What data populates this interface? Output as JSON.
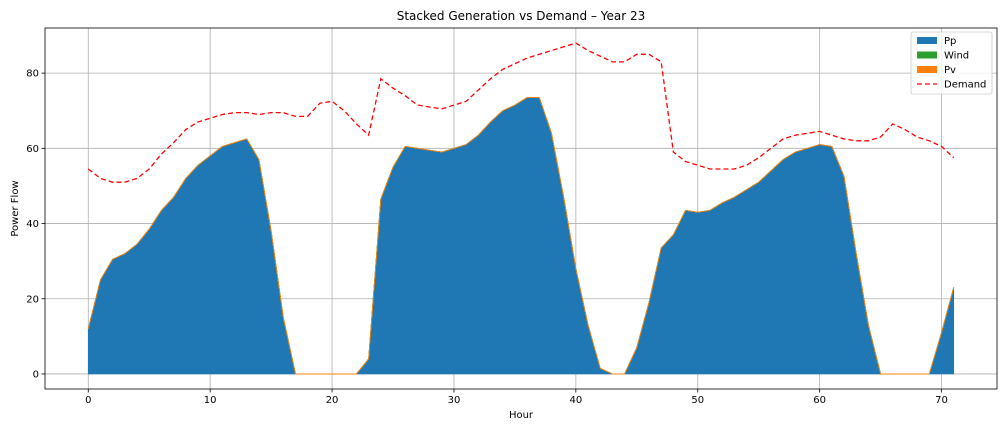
{
  "chart_data": {
    "type": "area",
    "title": "Stacked Generation vs Demand – Year 23",
    "xlabel": "Hour",
    "ylabel": "Power Flow",
    "xlim": [
      -3.55,
      74.55
    ],
    "ylim": [
      -4,
      92
    ],
    "xticks": [
      0,
      10,
      20,
      30,
      40,
      50,
      60,
      70
    ],
    "yticks": [
      0,
      20,
      40,
      60,
      80
    ],
    "grid": true,
    "legend_position": "top-right",
    "x": [
      0,
      1,
      2,
      3,
      4,
      5,
      6,
      7,
      8,
      9,
      10,
      11,
      12,
      13,
      14,
      15,
      16,
      17,
      18,
      19,
      20,
      21,
      22,
      23,
      24,
      25,
      26,
      27,
      28,
      29,
      30,
      31,
      32,
      33,
      34,
      35,
      36,
      37,
      38,
      39,
      40,
      41,
      42,
      43,
      44,
      45,
      46,
      47,
      48,
      49,
      50,
      51,
      52,
      53,
      54,
      55,
      56,
      57,
      58,
      59,
      60,
      61,
      62,
      63,
      64,
      65,
      66,
      67,
      68,
      69,
      70,
      71
    ],
    "series": [
      {
        "name": "Pp",
        "color": "#1f77b4",
        "style": "stacked-area",
        "values": [
          12,
          25,
          30.5,
          32,
          34.5,
          38.5,
          43.5,
          47,
          52,
          55.5,
          58,
          60.5,
          61.5,
          62.5,
          57,
          38,
          15,
          0,
          0,
          0,
          0,
          0,
          0,
          4,
          46.5,
          55,
          60.5,
          60,
          59.5,
          59,
          60,
          61,
          63.5,
          67,
          70,
          71.5,
          73.5,
          73.5,
          64,
          47,
          28,
          13,
          1.5,
          0,
          0,
          7,
          19,
          33.5,
          37,
          43.5,
          43,
          43.5,
          45.5,
          47,
          49,
          51,
          54,
          57,
          59,
          60,
          61,
          60.5,
          52.5,
          32,
          13,
          0,
          0,
          0,
          0,
          0,
          11,
          23
        ]
      },
      {
        "name": "Wind",
        "color": "#2ca02c",
        "style": "stacked-area",
        "values": [
          0,
          0,
          0,
          0,
          0,
          0,
          0,
          0,
          0,
          0,
          0,
          0,
          0,
          0,
          0,
          0,
          0,
          0,
          0,
          0,
          0,
          0,
          0,
          0,
          0,
          0,
          0,
          0,
          0,
          0,
          0,
          0,
          0,
          0,
          0,
          0,
          0,
          0,
          0,
          0,
          0,
          0,
          0,
          0,
          0,
          0,
          0,
          0,
          0,
          0,
          0,
          0,
          0,
          0,
          0,
          0,
          0,
          0,
          0,
          0,
          0,
          0,
          0,
          0,
          0,
          0,
          0,
          0,
          0,
          0,
          0,
          0
        ]
      },
      {
        "name": "Pv",
        "color": "#ff7f0e",
        "style": "stacked-area",
        "values": [
          0,
          0,
          0,
          0,
          0,
          0,
          0,
          0,
          0,
          0,
          0,
          0,
          0,
          0,
          0,
          0,
          0,
          0,
          0,
          0,
          0,
          0,
          0,
          0,
          0,
          0,
          0,
          0,
          0,
          0,
          0,
          0,
          0,
          0,
          0,
          0,
          0,
          0,
          0,
          0,
          0,
          0,
          0,
          0,
          0,
          0,
          0,
          0,
          0,
          0,
          0,
          0,
          0,
          0,
          0,
          0,
          0,
          0,
          0,
          0,
          0,
          0,
          0,
          0,
          0,
          0,
          0,
          0,
          0,
          0,
          0,
          0
        ]
      },
      {
        "name": "Demand",
        "color": "#ff0000",
        "style": "dashed-line",
        "values": [
          54.5,
          52,
          51,
          51,
          52,
          54.5,
          58.5,
          61.5,
          65,
          67,
          68,
          69,
          69.5,
          69.5,
          69,
          69.5,
          69.5,
          68.5,
          68.5,
          72,
          72.5,
          70,
          66.5,
          63.5,
          78.5,
          76,
          74,
          71.5,
          71,
          70.5,
          71.5,
          72.5,
          75.5,
          78.5,
          81,
          82.5,
          84,
          85,
          86,
          87,
          88,
          86,
          84.5,
          83,
          83,
          85,
          85,
          83,
          59,
          56.5,
          55.5,
          54.5,
          54.5,
          54.5,
          55.5,
          57.5,
          60,
          62.5,
          63.5,
          64,
          64.5,
          63.5,
          62.5,
          62,
          62,
          63,
          66.5,
          65,
          63,
          62,
          60.5,
          57.5
        ]
      }
    ]
  }
}
